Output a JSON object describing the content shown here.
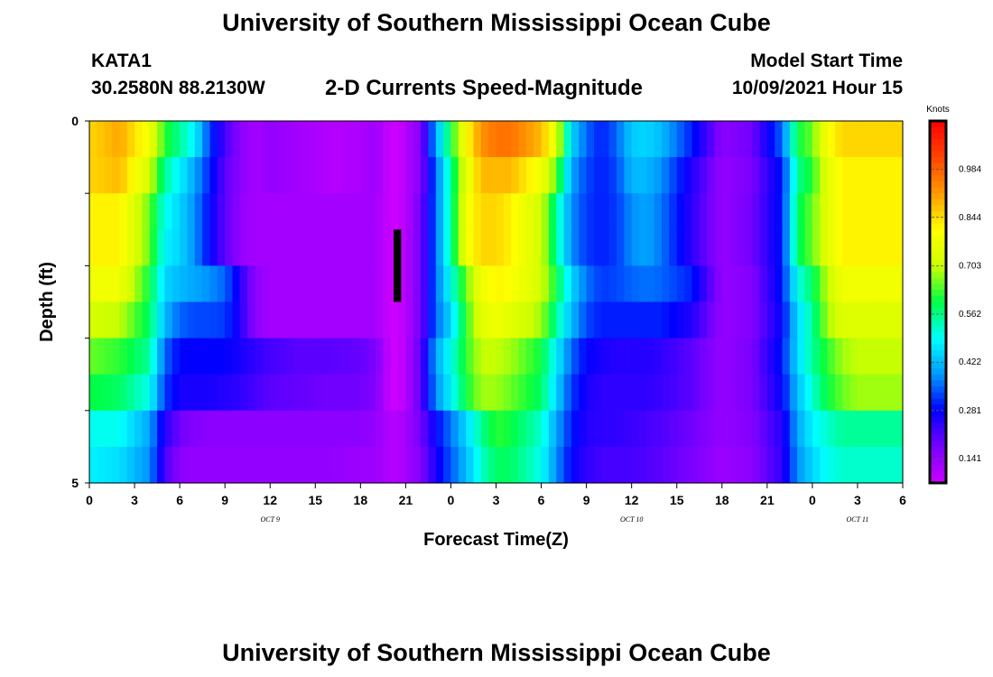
{
  "header": {
    "title": "University of Southern Mississippi Ocean Cube",
    "station_id": "KATA1",
    "station_coords": "30.2580N  88.2130W",
    "model_start_label": "Model Start Time",
    "model_start_value": "10/09/2021 Hour 15"
  },
  "footer": {
    "title": "University of Southern Mississippi Ocean Cube"
  },
  "chart_data": {
    "type": "heatmap",
    "title": "2-D Currents Speed-Magnitude",
    "xlabel": "Forecast Time(Z)",
    "ylabel": "Depth (ft)",
    "x_tick_labels": [
      "0",
      "3",
      "6",
      "9",
      "12",
      "15",
      "18",
      "21",
      "0",
      "3",
      "6",
      "9",
      "12",
      "15",
      "18",
      "21",
      "0",
      "3",
      "6"
    ],
    "x_day_labels": [
      {
        "label": "OCT 9",
        "hour": 12
      },
      {
        "label": "OCT 10",
        "hour": 36
      },
      {
        "label": "OCT 11",
        "hour": 51
      }
    ],
    "x_range_hours": [
      0,
      54
    ],
    "y_tick_labels": [
      "0",
      "5"
    ],
    "ylim": [
      0,
      5
    ],
    "depth_bands": [
      0.25,
      0.75,
      1.25,
      1.75,
      2.25,
      2.75,
      3.25,
      3.75,
      4.25,
      4.75
    ],
    "colorbar": {
      "unit": "Knots",
      "min": 0.07,
      "max": 1.125,
      "tick_labels": [
        "0.141",
        "0.281",
        "0.422",
        "0.562",
        "0.703",
        "0.844",
        "0.984"
      ],
      "colors": [
        "#cc00ff",
        "#7700ff",
        "#0000ff",
        "#0099ff",
        "#00ffff",
        "#00ff44",
        "#ccff00",
        "#ffff00",
        "#ff9900",
        "#ff4400",
        "#ff0000"
      ]
    },
    "profiles": {
      "hours": [
        0,
        2,
        4,
        5,
        6,
        7,
        8,
        9,
        10,
        11,
        12,
        14,
        16,
        18,
        19,
        20,
        20.5,
        21,
        22,
        23,
        24,
        25,
        26,
        27,
        28,
        30,
        31,
        32,
        33,
        34,
        35,
        36,
        37,
        38,
        40,
        42,
        44,
        46,
        47,
        48,
        49,
        50,
        51,
        52,
        54
      ],
      "rows": [
        [
          0.85,
          0.9,
          0.78,
          0.62,
          0.55,
          0.48,
          0.32,
          0.22,
          0.15,
          0.12,
          0.14,
          0.12,
          0.1,
          0.11,
          0.13,
          0.07,
          0.07,
          0.1,
          0.16,
          0.4,
          0.6,
          0.8,
          0.92,
          0.96,
          0.96,
          0.88,
          0.75,
          0.45,
          0.35,
          0.3,
          0.35,
          0.44,
          0.45,
          0.42,
          0.3,
          0.15,
          0.18,
          0.35,
          0.6,
          0.65,
          0.8,
          0.85,
          0.85,
          0.85,
          0.85
        ],
        [
          0.85,
          0.88,
          0.72,
          0.55,
          0.48,
          0.4,
          0.3,
          0.2,
          0.15,
          0.12,
          0.14,
          0.12,
          0.1,
          0.11,
          0.13,
          0.07,
          0.07,
          0.1,
          0.16,
          0.35,
          0.55,
          0.75,
          0.88,
          0.88,
          0.88,
          0.78,
          0.65,
          0.4,
          0.33,
          0.3,
          0.33,
          0.42,
          0.42,
          0.38,
          0.25,
          0.14,
          0.17,
          0.3,
          0.55,
          0.62,
          0.75,
          0.82,
          0.82,
          0.82,
          0.82
        ],
        [
          0.82,
          0.82,
          0.65,
          0.5,
          0.45,
          0.38,
          0.28,
          0.2,
          0.14,
          0.12,
          0.12,
          0.12,
          0.12,
          0.12,
          0.12,
          0.07,
          0.07,
          0.1,
          0.18,
          0.35,
          0.55,
          0.78,
          0.85,
          0.85,
          0.82,
          0.72,
          0.55,
          0.38,
          0.32,
          0.3,
          0.32,
          0.38,
          0.4,
          0.36,
          0.24,
          0.14,
          0.18,
          0.3,
          0.58,
          0.65,
          0.75,
          0.82,
          0.82,
          0.82,
          0.82
        ],
        [
          0.82,
          0.82,
          0.65,
          0.48,
          0.45,
          0.38,
          0.28,
          0.2,
          0.14,
          0.12,
          0.12,
          0.12,
          0.12,
          0.12,
          0.12,
          0.07,
          0.07,
          0.1,
          0.18,
          0.35,
          0.55,
          0.78,
          0.85,
          0.85,
          0.82,
          0.72,
          0.55,
          0.38,
          0.32,
          0.3,
          0.32,
          0.38,
          0.4,
          0.36,
          0.24,
          0.14,
          0.18,
          0.3,
          0.58,
          0.65,
          0.75,
          0.82,
          0.82,
          0.82,
          0.82
        ],
        [
          0.78,
          0.78,
          0.6,
          0.45,
          0.42,
          0.4,
          0.38,
          0.35,
          0.25,
          0.15,
          0.12,
          0.12,
          0.12,
          0.12,
          0.12,
          0.07,
          0.07,
          0.1,
          0.18,
          0.35,
          0.5,
          0.65,
          0.78,
          0.82,
          0.8,
          0.72,
          0.6,
          0.45,
          0.36,
          0.32,
          0.33,
          0.35,
          0.36,
          0.35,
          0.3,
          0.14,
          0.16,
          0.3,
          0.5,
          0.58,
          0.7,
          0.78,
          0.78,
          0.78,
          0.78
        ],
        [
          0.72,
          0.7,
          0.58,
          0.42,
          0.35,
          0.33,
          0.33,
          0.32,
          0.25,
          0.15,
          0.12,
          0.12,
          0.12,
          0.12,
          0.12,
          0.07,
          0.07,
          0.1,
          0.18,
          0.35,
          0.45,
          0.62,
          0.75,
          0.78,
          0.75,
          0.68,
          0.55,
          0.42,
          0.33,
          0.3,
          0.3,
          0.3,
          0.3,
          0.3,
          0.25,
          0.14,
          0.16,
          0.28,
          0.45,
          0.55,
          0.68,
          0.74,
          0.74,
          0.74,
          0.74
        ],
        [
          0.65,
          0.62,
          0.55,
          0.35,
          0.28,
          0.28,
          0.28,
          0.28,
          0.26,
          0.24,
          0.22,
          0.2,
          0.2,
          0.19,
          0.17,
          0.07,
          0.07,
          0.1,
          0.2,
          0.4,
          0.5,
          0.62,
          0.7,
          0.7,
          0.68,
          0.6,
          0.48,
          0.35,
          0.28,
          0.26,
          0.25,
          0.25,
          0.25,
          0.24,
          0.2,
          0.14,
          0.17,
          0.3,
          0.45,
          0.55,
          0.62,
          0.68,
          0.7,
          0.7,
          0.7
        ],
        [
          0.6,
          0.58,
          0.5,
          0.32,
          0.26,
          0.26,
          0.26,
          0.25,
          0.24,
          0.22,
          0.2,
          0.19,
          0.18,
          0.18,
          0.16,
          0.07,
          0.07,
          0.1,
          0.2,
          0.38,
          0.48,
          0.6,
          0.68,
          0.68,
          0.65,
          0.58,
          0.45,
          0.32,
          0.26,
          0.24,
          0.24,
          0.24,
          0.24,
          0.23,
          0.2,
          0.14,
          0.17,
          0.28,
          0.42,
          0.52,
          0.6,
          0.65,
          0.68,
          0.68,
          0.68
        ],
        [
          0.5,
          0.5,
          0.4,
          0.25,
          0.18,
          0.16,
          0.15,
          0.15,
          0.15,
          0.15,
          0.15,
          0.15,
          0.15,
          0.15,
          0.14,
          0.1,
          0.1,
          0.12,
          0.18,
          0.28,
          0.36,
          0.45,
          0.55,
          0.62,
          0.6,
          0.52,
          0.4,
          0.3,
          0.25,
          0.24,
          0.24,
          0.23,
          0.22,
          0.21,
          0.18,
          0.14,
          0.16,
          0.25,
          0.4,
          0.48,
          0.52,
          0.55,
          0.55,
          0.55,
          0.55
        ],
        [
          0.48,
          0.46,
          0.38,
          0.22,
          0.15,
          0.14,
          0.14,
          0.14,
          0.14,
          0.14,
          0.14,
          0.14,
          0.14,
          0.13,
          0.13,
          0.1,
          0.1,
          0.12,
          0.16,
          0.26,
          0.34,
          0.42,
          0.52,
          0.58,
          0.58,
          0.5,
          0.38,
          0.28,
          0.24,
          0.22,
          0.22,
          0.22,
          0.21,
          0.2,
          0.17,
          0.13,
          0.15,
          0.24,
          0.38,
          0.45,
          0.5,
          0.52,
          0.52,
          0.52,
          0.52
        ]
      ]
    },
    "missing_data": [
      {
        "hour_start": 20.2,
        "hour_end": 20.7,
        "depth_start": 1.5,
        "depth_end": 2.5
      }
    ],
    "missing_color": "#000000"
  }
}
